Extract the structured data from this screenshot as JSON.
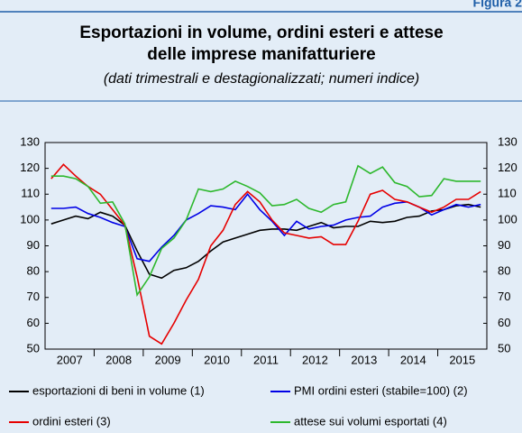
{
  "figure_label": "Figura 2",
  "chart_data": {
    "type": "line",
    "title": [
      "Esportazioni in volume, ordini esteri e attese",
      "delle imprese manifatturiere"
    ],
    "subtitle": "(dati trimestrali e destagionalizzati; numeri indice)",
    "categories": [
      "2007",
      null,
      null,
      null,
      "2008",
      null,
      null,
      null,
      "2009",
      null,
      null,
      null,
      "2010",
      null,
      null,
      null,
      "2011",
      null,
      null,
      null,
      "2012",
      null,
      null,
      null,
      "2013",
      null,
      null,
      null,
      "2014",
      null,
      null,
      null,
      "2015",
      null,
      null,
      null
    ],
    "ylim": [
      50,
      130
    ],
    "yticks": [
      50,
      60,
      70,
      80,
      90,
      100,
      110,
      120,
      130
    ],
    "y2lim": [
      50,
      130
    ],
    "y2ticks": [
      50,
      60,
      70,
      80,
      90,
      100,
      110,
      120,
      130
    ],
    "series": [
      {
        "name": "esportazioni di beni in volume (1)",
        "color": "#000000",
        "values": [
          98.5,
          100,
          101.5,
          100.5,
          103,
          101.5,
          98,
          88,
          79,
          77.5,
          80.5,
          81.5,
          84,
          88,
          91.5,
          93,
          94.5,
          96,
          96.5,
          96.5,
          96,
          97.5,
          99,
          97,
          97.5,
          97.5,
          99.5,
          99,
          99.5,
          101,
          101.5,
          103.5,
          104,
          105.5,
          106,
          105
        ]
      },
      {
        "name": "PMI ordini esteri (stabile=100) (2)",
        "color": "#0000e6",
        "values": [
          104.5,
          104.5,
          105,
          102.5,
          101,
          99,
          97.5,
          85,
          84,
          89.5,
          94,
          100,
          102.5,
          105.5,
          105,
          104,
          110,
          104,
          99.5,
          94,
          99.5,
          96.5,
          97.5,
          98,
          100,
          101,
          101.5,
          105,
          106.5,
          107,
          105,
          102,
          104,
          106,
          105,
          106
        ]
      },
      {
        "name": "ordini esteri (3)",
        "color": "#e60000",
        "values": [
          116,
          121.5,
          117,
          113,
          110,
          104,
          98,
          78,
          55,
          52,
          60,
          69,
          77,
          90,
          96,
          106,
          111,
          107,
          100,
          95,
          94,
          93,
          93.5,
          90.5,
          90.5,
          99.5,
          110,
          111.5,
          108,
          107,
          105,
          103,
          105,
          108,
          108,
          111
        ]
      },
      {
        "name": "attese sui volumi esportati (4)",
        "color": "#2db82d",
        "values": [
          117,
          117,
          116,
          113,
          106.5,
          107,
          98.5,
          71,
          78,
          89,
          93,
          100,
          112,
          111,
          112,
          115,
          113,
          110.5,
          105.5,
          106,
          108,
          104.5,
          103,
          106,
          107,
          121,
          118,
          120.5,
          114.5,
          113,
          109,
          109.5,
          116,
          115,
          115,
          115
        ]
      }
    ]
  }
}
